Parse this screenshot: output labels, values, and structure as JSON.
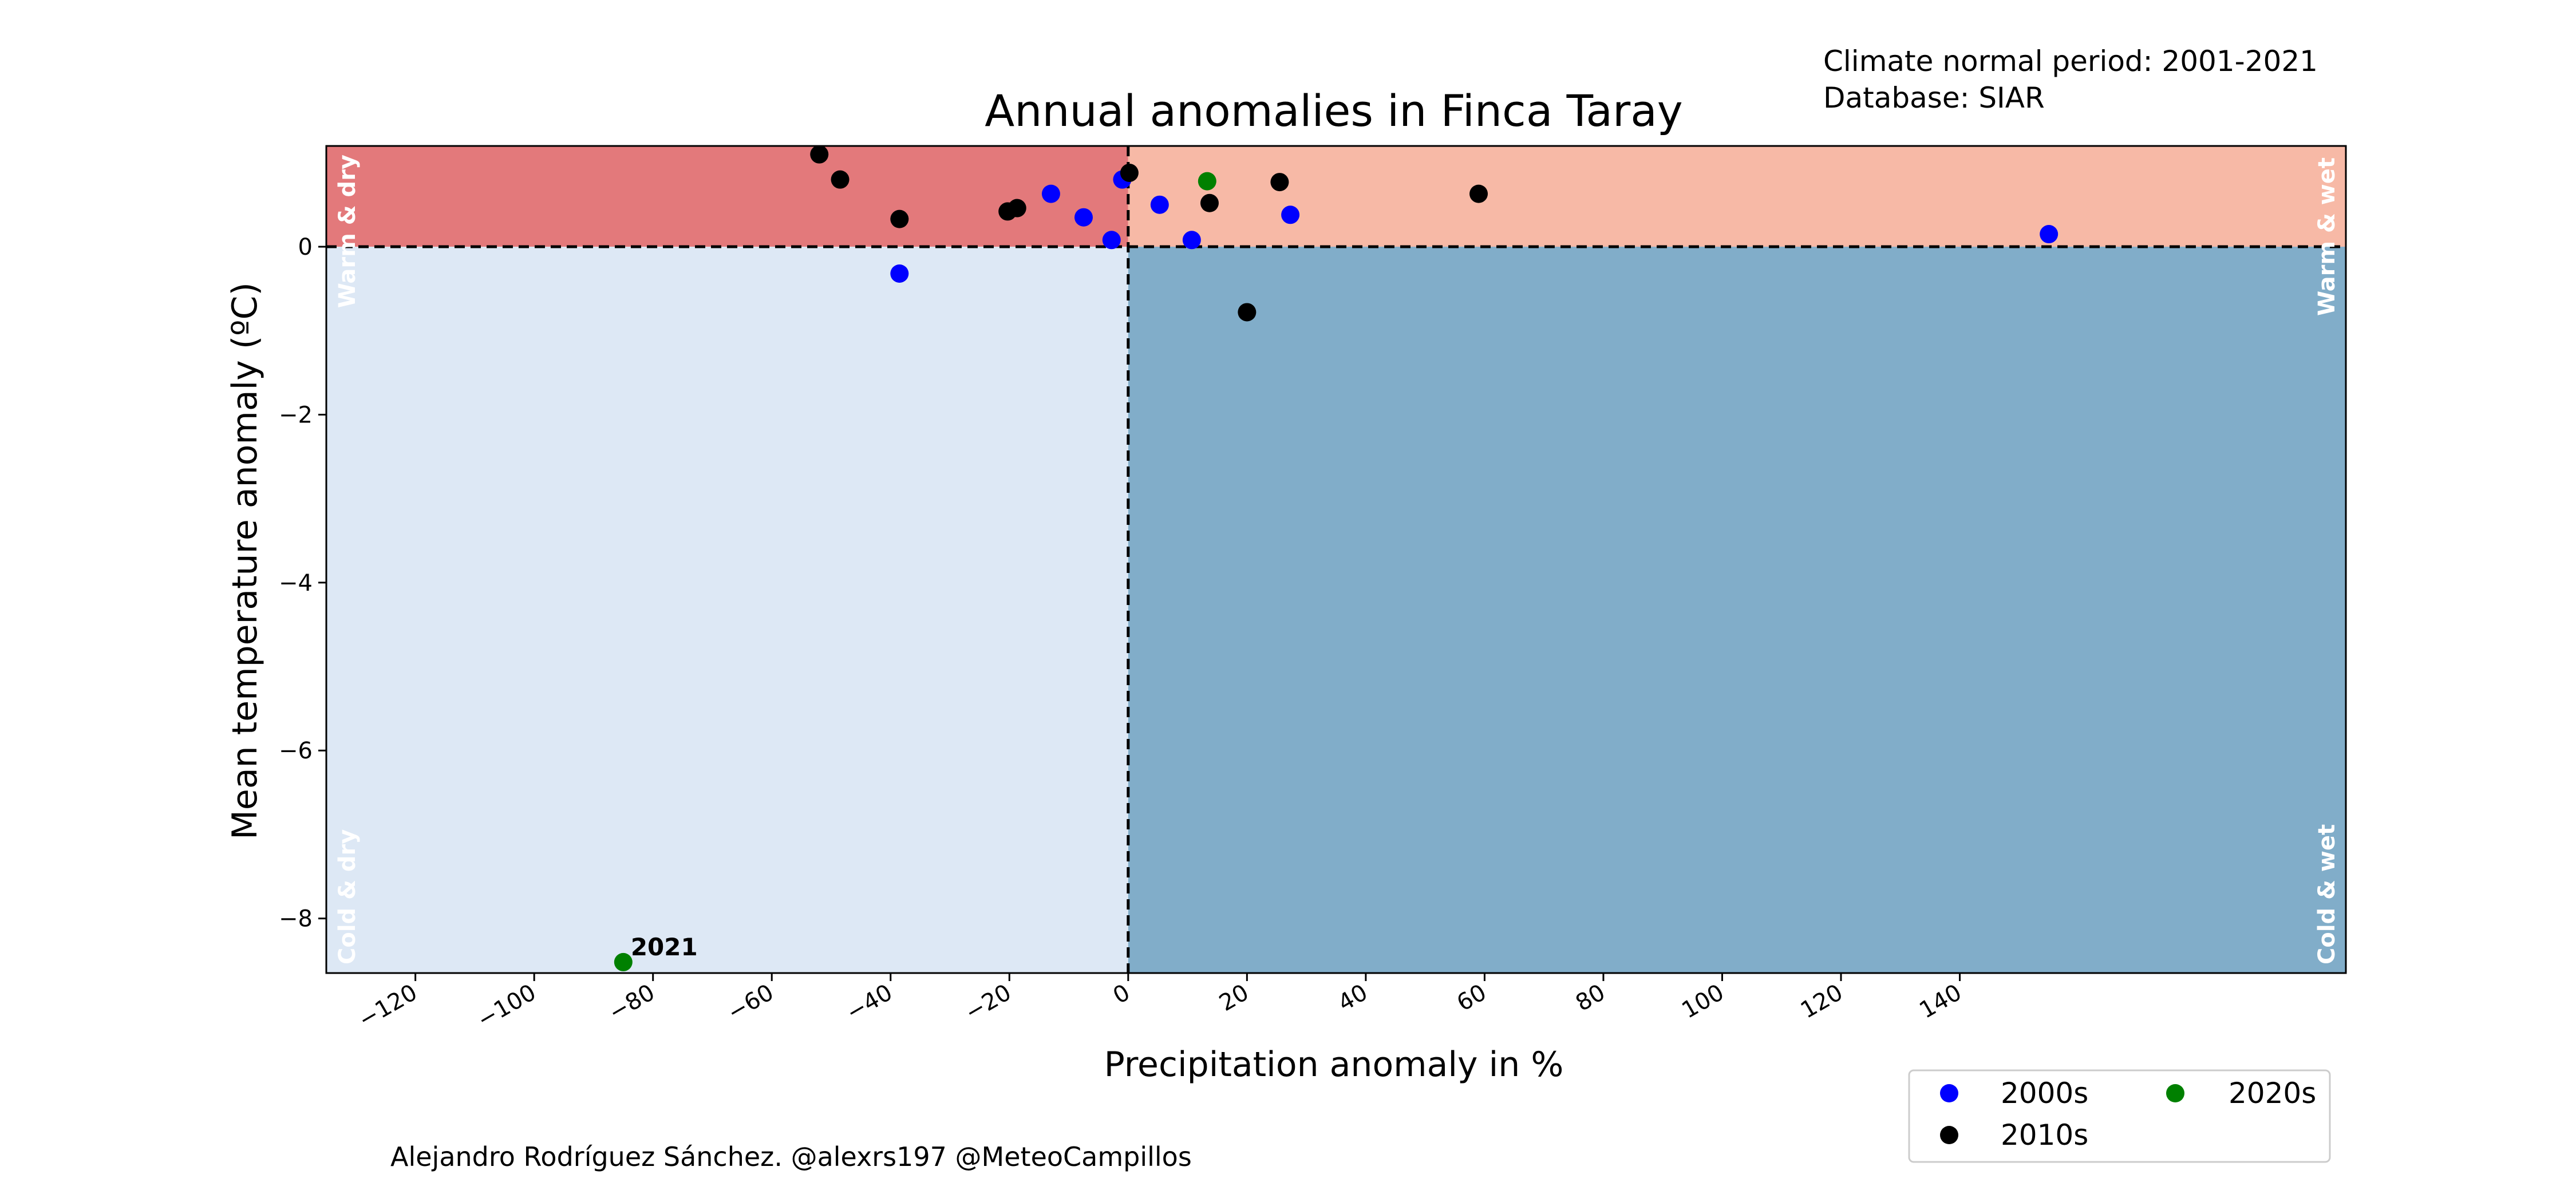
{
  "header_notes": {
    "line1": "Climate normal period: 2001-2021",
    "line2": "Database: SIAR"
  },
  "footer": {
    "credit": "Alejandro Rodríguez Sánchez. @alexrs197 @MeteoCampillos"
  },
  "colors": {
    "warm_dry": "#e3797b",
    "warm_wet": "#f7b9a6",
    "cold_dry": "#dde8f5",
    "cold_wet": "#81adc9",
    "quadrant_label": "#ffffff"
  },
  "chart_data": {
    "type": "scatter",
    "title": "Annual anomalies in Finca Taray",
    "xlabel": "Precipitation anomaly in %",
    "ylabel": "Mean temperature anomaly (ºC)",
    "xlim": [
      -135,
      205
    ],
    "ylim": [
      -8.65,
      1.2
    ],
    "xticks": [
      -120,
      -100,
      -80,
      -60,
      -40,
      -20,
      0,
      20,
      40,
      60,
      80,
      100,
      120,
      140
    ],
    "xtick_labels": [
      "−120",
      "−100",
      "−80",
      "−60",
      "−40",
      "−20",
      "0",
      "20",
      "40",
      "60",
      "80",
      "100",
      "120",
      "140"
    ],
    "yticks": [
      0,
      -2,
      -4,
      -6,
      -8
    ],
    "ytick_labels": [
      "0",
      "−2",
      "−4",
      "−6",
      "−8"
    ],
    "reference_lines": {
      "x": 0,
      "y": 0,
      "style": "dashed"
    },
    "quadrant_labels": {
      "warm_dry": "Warm & dry",
      "warm_wet": "Warm & wet",
      "cold_dry": "Cold & dry",
      "cold_wet": "Cold & wet"
    },
    "legend_placement": "bottom-right, outside plot",
    "series": [
      {
        "name": "2000s",
        "color": "#0000ff",
        "points": [
          {
            "x": -38.5,
            "y": -0.32
          },
          {
            "x": -13,
            "y": 0.63
          },
          {
            "x": -7.5,
            "y": 0.35
          },
          {
            "x": -2.8,
            "y": 0.08
          },
          {
            "x": -1,
            "y": 0.8
          },
          {
            "x": 5.3,
            "y": 0.5
          },
          {
            "x": 10.7,
            "y": 0.08
          },
          {
            "x": 27.3,
            "y": 0.38
          },
          {
            "x": 155,
            "y": 0.15
          }
        ]
      },
      {
        "name": "2010s",
        "color": "#000000",
        "points": [
          {
            "x": -52,
            "y": 1.1
          },
          {
            "x": -48.5,
            "y": 0.8
          },
          {
            "x": -38.5,
            "y": 0.33
          },
          {
            "x": -20.3,
            "y": 0.42
          },
          {
            "x": -18.7,
            "y": 0.46
          },
          {
            "x": 0.2,
            "y": 0.88
          },
          {
            "x": 13.7,
            "y": 0.52
          },
          {
            "x": 20,
            "y": -0.78
          },
          {
            "x": 25.5,
            "y": 0.77
          },
          {
            "x": 59,
            "y": 0.63
          }
        ]
      },
      {
        "name": "2020s",
        "color": "#008000",
        "points": [
          {
            "x": 13.3,
            "y": 0.78
          },
          {
            "x": -85,
            "y": -8.52,
            "label": "2021"
          }
        ]
      }
    ]
  }
}
